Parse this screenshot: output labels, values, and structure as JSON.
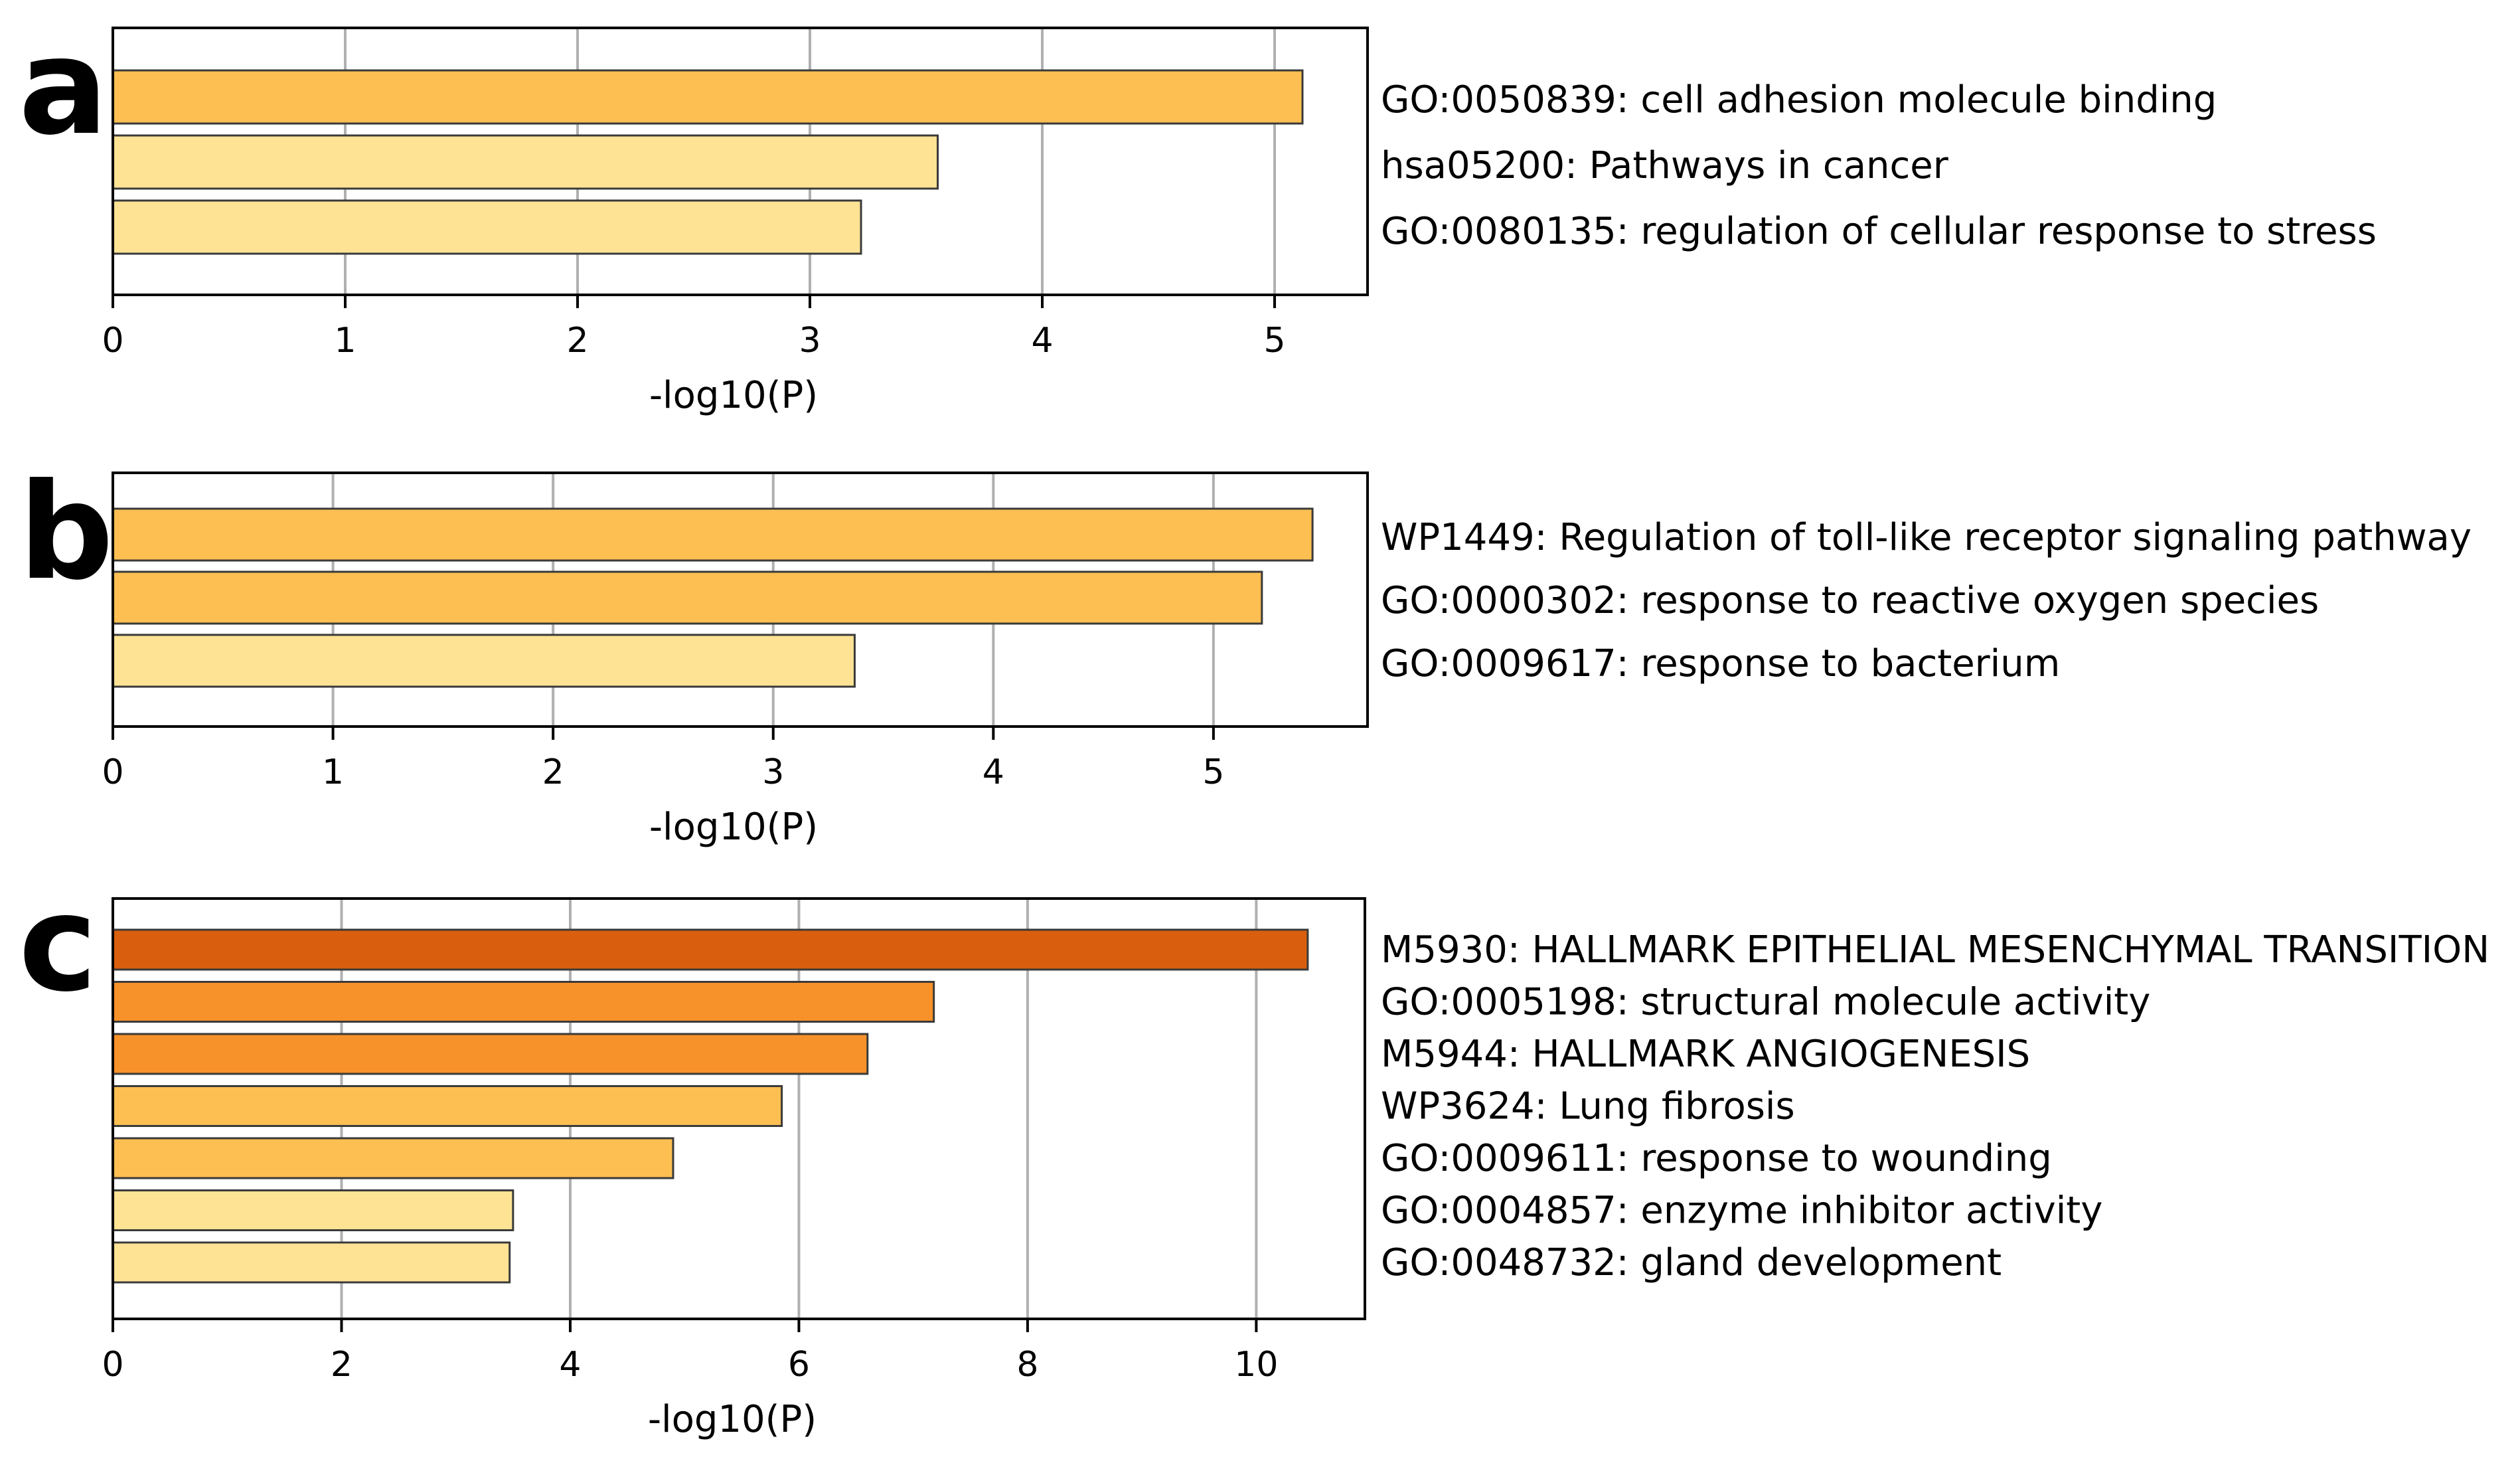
{
  "chart_data": [
    {
      "panel": "a",
      "type": "bar",
      "orientation": "horizontal",
      "xlabel": "-log10(P)",
      "xlim": [
        0,
        5.4
      ],
      "xticks": [
        0,
        1,
        2,
        3,
        4,
        5
      ],
      "grid": "vertical, at ticks",
      "categories": [
        "GO:0050839: cell adhesion molecule binding",
        "hsa05200: Pathways in cancer",
        "GO:0080135: regulation of cellular response to stress"
      ],
      "values": [
        5.12,
        3.55,
        3.22
      ],
      "colors": [
        "#fdbf52",
        "#fee395",
        "#fee395"
      ]
    },
    {
      "panel": "b",
      "type": "bar",
      "orientation": "horizontal",
      "xlabel": "-log10(P)",
      "xlim": [
        0,
        5.7
      ],
      "xticks": [
        0,
        1,
        2,
        3,
        4,
        5
      ],
      "grid": "vertical, at ticks",
      "categories": [
        "WP1449: Regulation of toll-like receptor signaling pathway",
        "GO:0000302: response to reactive oxygen species",
        "GO:0009617: response to bacterium"
      ],
      "values": [
        5.45,
        5.22,
        3.37
      ],
      "colors": [
        "#fdbf52",
        "#fdbf52",
        "#fee395"
      ]
    },
    {
      "panel": "c",
      "type": "bar",
      "orientation": "horizontal",
      "xlabel": "-log10(P)",
      "xlim": [
        0,
        10.95
      ],
      "xticks": [
        0,
        2,
        4,
        6,
        8,
        10
      ],
      "grid": "vertical, at ticks",
      "categories": [
        "M5930: HALLMARK EPITHELIAL MESENCHYMAL TRANSITION",
        "GO:0005198: structural molecule activity",
        "M5944: HALLMARK ANGIOGENESIS",
        "WP3624: Lung fibrosis",
        "GO:0009611: response to wounding",
        "GO:0004857: enzyme inhibitor activity",
        "GO:0048732: gland development"
      ],
      "values": [
        10.45,
        7.18,
        6.6,
        5.85,
        4.9,
        3.5,
        3.47
      ],
      "colors": [
        "#d95f0e",
        "#f7922a",
        "#f7922a",
        "#fdbf52",
        "#fdbf52",
        "#fee395",
        "#fee395"
      ]
    }
  ]
}
